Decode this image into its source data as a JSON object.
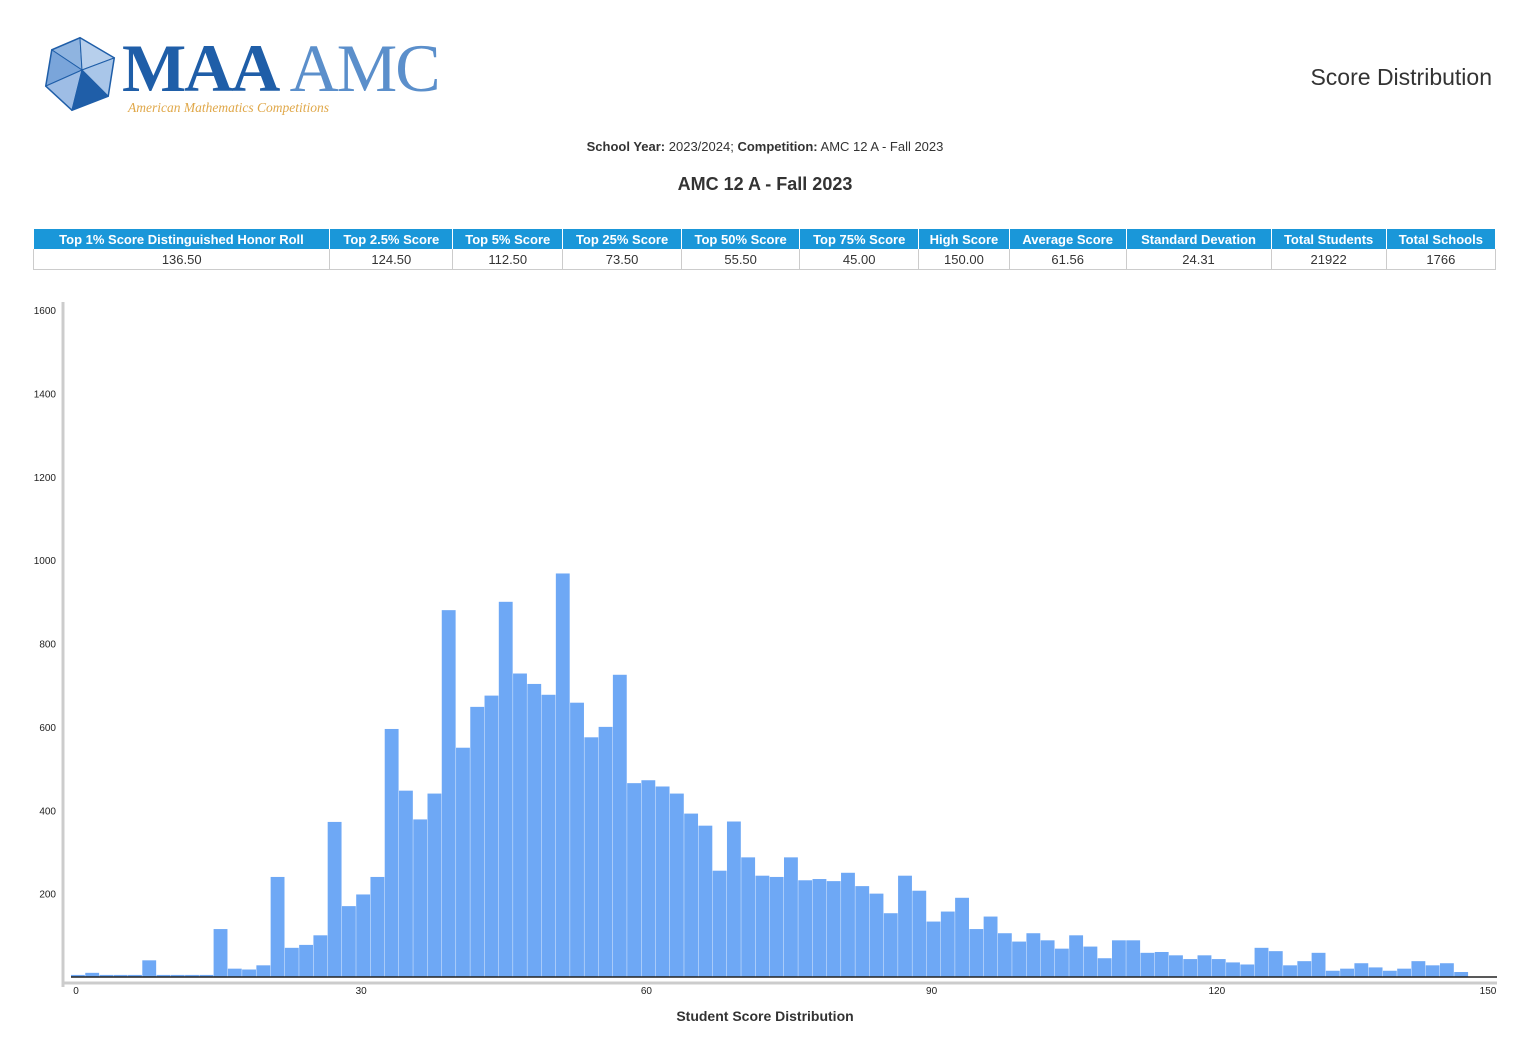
{
  "header": {
    "logo_text_maa": "MAA",
    "logo_text_amc": "AMC",
    "logo_subtitle": "American Mathematics Competitions",
    "page_title": "Score Distribution"
  },
  "subheader": {
    "school_year_label": "School Year:",
    "school_year_value": "2023/2024;",
    "competition_label": "Competition:",
    "competition_value": "AMC 12 A - Fall 2023"
  },
  "stats_table": {
    "headers": [
      "Top 1% Score Distinguished Honor Roll",
      "Top 2.5% Score",
      "Top 5% Score",
      "Top 25% Score",
      "Top 50% Score",
      "Top 75% Score",
      "High Score",
      "Average Score",
      "Standard Devation",
      "Total Students",
      "Total Schools"
    ],
    "values": [
      "136.50",
      "124.50",
      "112.50",
      "73.50",
      "55.50",
      "45.00",
      "150.00",
      "61.56",
      "24.31",
      "21922",
      "1766"
    ]
  },
  "colors": {
    "bar": "#6ea8f5",
    "header_bg": "#1a97d9",
    "accent": "#1f5ea8"
  },
  "chart_data": {
    "type": "bar",
    "title": "AMC 12 A - Fall 2023",
    "xlabel": "Student Score Distribution",
    "ylabel": "",
    "xlim": [
      0,
      150
    ],
    "ylim": [
      0,
      1600
    ],
    "xticks": [
      0,
      30,
      60,
      90,
      120,
      150
    ],
    "yticks": [
      200,
      400,
      600,
      800,
      1000,
      1200,
      1400,
      1600
    ],
    "bin_width": 1.5,
    "bins_start": [
      0,
      1.5,
      3,
      4.5,
      6,
      7.5,
      9,
      10.5,
      12,
      13.5,
      15,
      16.5,
      18,
      19.5,
      21,
      22.5,
      24,
      25.5,
      27,
      28.5,
      30,
      31.5,
      33,
      34.5,
      36,
      37.5,
      39,
      40.5,
      42,
      43.5,
      45,
      46.5,
      48,
      49.5,
      51,
      52.5,
      54,
      55.5,
      57,
      58.5,
      60,
      61.5,
      63,
      64.5,
      66,
      67.5,
      69,
      70.5,
      72,
      73.5,
      75,
      76.5,
      78,
      79.5,
      81,
      82.5,
      84,
      85.5,
      87,
      88.5,
      90,
      91.5,
      93,
      94.5,
      96,
      97.5,
      99,
      100.5,
      102,
      103.5,
      105,
      106.5,
      108,
      109.5,
      111,
      112.5,
      114,
      115.5,
      117,
      118.5,
      120,
      121.5,
      123,
      124.5,
      126,
      127.5,
      129,
      130.5,
      132,
      133.5,
      135,
      136.5,
      138,
      139.5,
      141,
      142.5,
      144,
      145.5,
      147,
      148.5
    ],
    "values": [
      5,
      10,
      5,
      5,
      5,
      40,
      5,
      5,
      5,
      5,
      115,
      20,
      18,
      28,
      240,
      70,
      77,
      100,
      372,
      170,
      198,
      240,
      595,
      447,
      378,
      440,
      880,
      550,
      648,
      675,
      900,
      728,
      703,
      677,
      968,
      658,
      575,
      600,
      725,
      465,
      472,
      457,
      440,
      392,
      363,
      255,
      373,
      287,
      243,
      240,
      287,
      232,
      235,
      230,
      250,
      218,
      200,
      153,
      243,
      207,
      133,
      157,
      190,
      115,
      145,
      105,
      85,
      105,
      88,
      68,
      100,
      73,
      45,
      88,
      88,
      58,
      60,
      52,
      43,
      52,
      43,
      35,
      30,
      70,
      62,
      28,
      38,
      58,
      15,
      20,
      33,
      23,
      15,
      20,
      38,
      28,
      33,
      12,
      0,
      0
    ]
  }
}
